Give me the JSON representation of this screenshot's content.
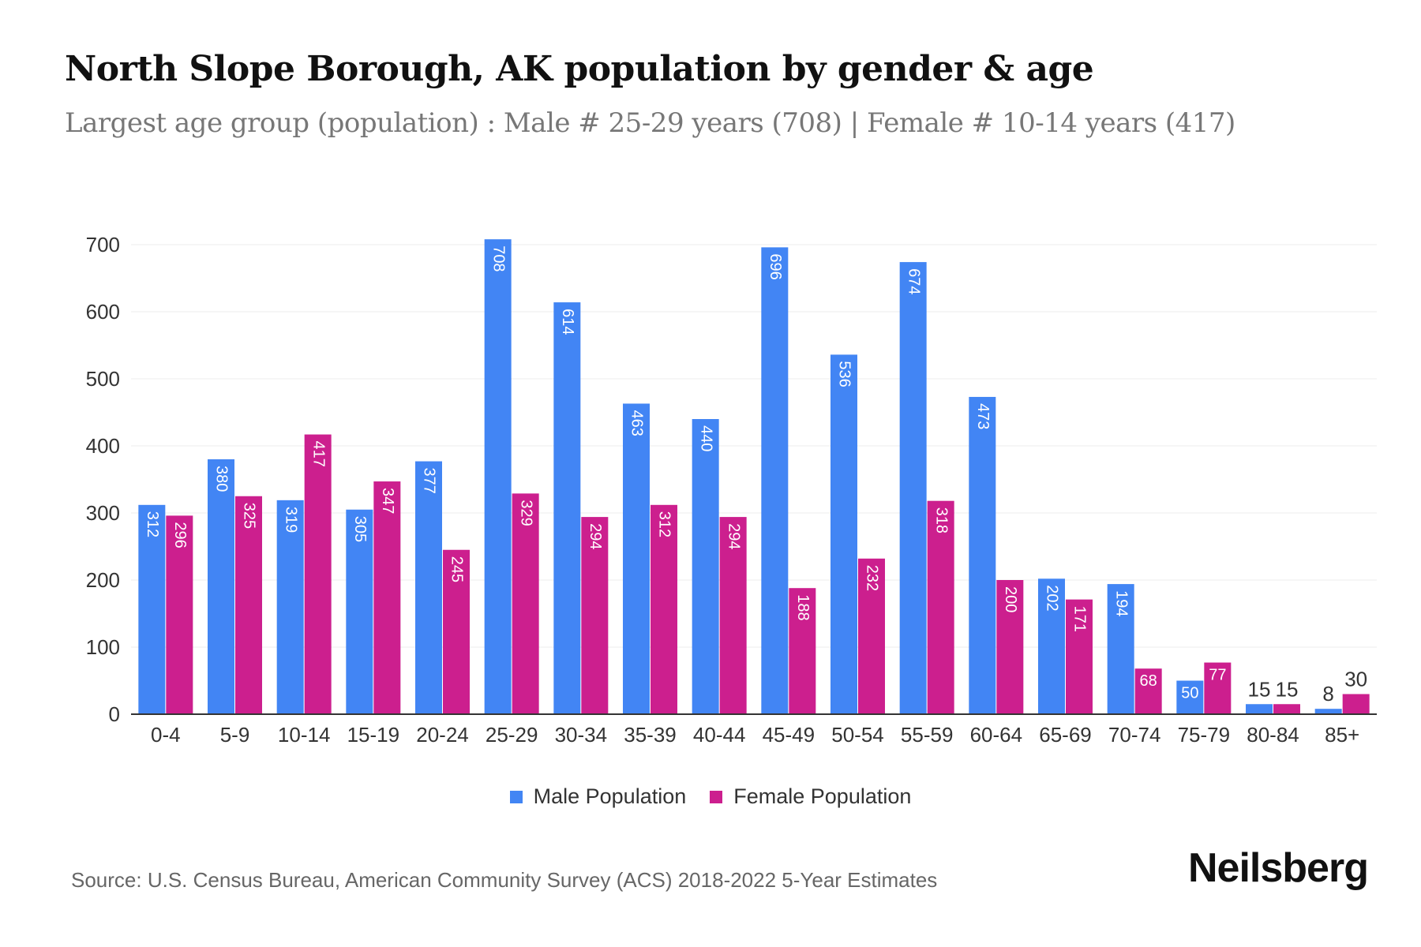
{
  "title": "North Slope Borough, AK population by gender & age",
  "subtitle": "Largest age group (population) : Male # 25-29 years (708) | Female # 10-14 years (417)",
  "source": "Source: U.S. Census Bureau, American Community Survey (ACS) 2018-2022 5-Year Estimates",
  "brand": "Neilsberg",
  "chart_data": {
    "type": "bar",
    "title": "North Slope Borough, AK population by gender & age",
    "xlabel": "",
    "ylabel": "",
    "ylim": [
      0,
      700
    ],
    "yticks": [
      0,
      100,
      200,
      300,
      400,
      500,
      600,
      700
    ],
    "grid": true,
    "legend_position": "bottom-center",
    "categories": [
      "0-4",
      "5-9",
      "10-14",
      "15-19",
      "20-24",
      "25-29",
      "30-34",
      "35-39",
      "40-44",
      "45-49",
      "50-54",
      "55-59",
      "60-64",
      "65-69",
      "70-74",
      "75-79",
      "80-84",
      "85+"
    ],
    "series": [
      {
        "name": "Male Population",
        "color": "#4285f4",
        "values": [
          312,
          380,
          319,
          305,
          377,
          708,
          614,
          463,
          440,
          696,
          536,
          674,
          473,
          202,
          194,
          50,
          15,
          8
        ]
      },
      {
        "name": "Female Population",
        "color": "#cc1f8e",
        "values": [
          296,
          325,
          417,
          347,
          245,
          329,
          294,
          312,
          294,
          188,
          232,
          318,
          200,
          171,
          68,
          77,
          15,
          30
        ]
      }
    ]
  }
}
